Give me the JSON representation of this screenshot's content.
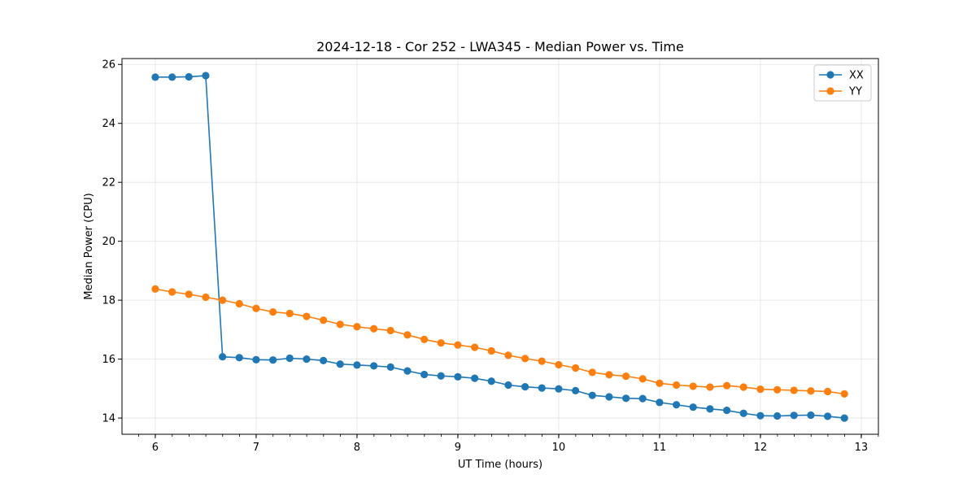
{
  "chart_data": {
    "type": "line",
    "title": "2024-12-18 - Cor 252 - LWA345 - Median Power vs. Time",
    "xlabel": "UT Time (hours)",
    "ylabel": "Median Power (CPU)",
    "xlim": [
      5.67,
      13.17
    ],
    "ylim": [
      13.45,
      26.2
    ],
    "xticks": [
      6,
      7,
      8,
      9,
      10,
      11,
      12,
      13
    ],
    "yticks": [
      14,
      16,
      18,
      20,
      22,
      24,
      26
    ],
    "x_minor_step": 0.1667,
    "grid": true,
    "legend_position": "top-right",
    "x": [
      6.0,
      6.167,
      6.333,
      6.5,
      6.667,
      6.833,
      7.0,
      7.167,
      7.333,
      7.5,
      7.667,
      7.833,
      8.0,
      8.167,
      8.333,
      8.5,
      8.667,
      8.833,
      9.0,
      9.167,
      9.333,
      9.5,
      9.667,
      9.833,
      10.0,
      10.167,
      10.333,
      10.5,
      10.667,
      10.833,
      11.0,
      11.167,
      11.333,
      11.5,
      11.667,
      11.833,
      12.0,
      12.167,
      12.333,
      12.5,
      12.667,
      12.833
    ],
    "series": [
      {
        "name": "XX",
        "color": "#1f77b4",
        "values": [
          25.57,
          25.57,
          25.58,
          25.62,
          16.08,
          16.05,
          15.98,
          15.97,
          16.03,
          16.0,
          15.95,
          15.83,
          15.8,
          15.77,
          15.73,
          15.6,
          15.48,
          15.43,
          15.4,
          15.35,
          15.25,
          15.12,
          15.06,
          15.02,
          14.99,
          14.93,
          14.77,
          14.72,
          14.67,
          14.66,
          14.53,
          14.45,
          14.37,
          14.31,
          14.26,
          14.16,
          14.08,
          14.07,
          14.09,
          14.1,
          14.06,
          14.0
        ]
      },
      {
        "name": "YY",
        "color": "#ff7f0e",
        "values": [
          18.38,
          18.28,
          18.2,
          18.1,
          18.0,
          17.88,
          17.72,
          17.6,
          17.55,
          17.45,
          17.32,
          17.18,
          17.1,
          17.03,
          16.97,
          16.82,
          16.67,
          16.55,
          16.48,
          16.4,
          16.28,
          16.13,
          16.02,
          15.93,
          15.81,
          15.7,
          15.55,
          15.47,
          15.42,
          15.33,
          15.18,
          15.12,
          15.08,
          15.05,
          15.1,
          15.05,
          14.98,
          14.96,
          14.94,
          14.92,
          14.9,
          14.82
        ]
      }
    ]
  }
}
